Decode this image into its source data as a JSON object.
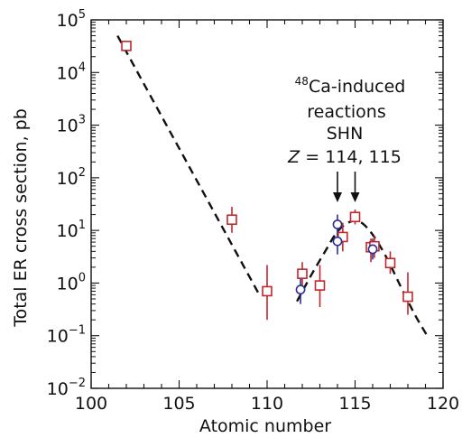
{
  "chart_data": {
    "type": "scatter",
    "title": "",
    "xlabel": "Atomic number",
    "ylabel": "Total ER cross section, pb",
    "xlim": [
      100,
      120
    ],
    "ylim": [
      0.01,
      100000
    ],
    "yscale": "log",
    "x_ticks": [
      "100",
      "105",
      "110",
      "115",
      "120"
    ],
    "y_ticks": [
      {
        "base": "10",
        "exp": "−2",
        "value": 0.01
      },
      {
        "base": "10",
        "exp": "−1",
        "value": 0.1
      },
      {
        "base": "10",
        "exp": "0",
        "value": 1
      },
      {
        "base": "10",
        "exp": "1",
        "value": 10
      },
      {
        "base": "10",
        "exp": "2",
        "value": 100
      },
      {
        "base": "10",
        "exp": "3",
        "value": 1000
      },
      {
        "base": "10",
        "exp": "4",
        "value": 10000
      },
      {
        "base": "10",
        "exp": "5",
        "value": 100000
      }
    ],
    "grid": false,
    "colors": {
      "squares": "#c0272d",
      "circles": "#2b2f8f",
      "fit": "#111111"
    },
    "annotations": {
      "reaction_prefix": "48",
      "reaction_line1": "Ca-induced",
      "reaction_line2": "reactions",
      "shn_label": "SHN",
      "z_symbol": "Z",
      "z_values": " = 114, 115",
      "arrows_at_x": [
        114,
        115
      ]
    },
    "series": [
      {
        "marker": "square",
        "points": [
          {
            "x": 102,
            "y": 32000,
            "lo": 28000,
            "hi": 36000
          },
          {
            "x": 108,
            "y": 16,
            "lo": 9,
            "hi": 28
          },
          {
            "x": 110,
            "y": 0.7,
            "lo": 0.2,
            "hi": 2.2
          },
          {
            "x": 112,
            "y": 1.5,
            "lo": 0.8,
            "hi": 2.5
          },
          {
            "x": 113,
            "y": 0.9,
            "lo": 0.35,
            "hi": 2.2
          },
          {
            "x": 114.3,
            "y": 7.5,
            "lo": 4.0,
            "hi": 14
          },
          {
            "x": 115,
            "y": 18,
            "lo": 13,
            "hi": 25
          },
          {
            "x": 115.9,
            "y": 4.8,
            "lo": 2.5,
            "hi": 7.0
          },
          {
            "x": 116.1,
            "y": 5.0,
            "lo": 3.0,
            "hi": 8.0
          },
          {
            "x": 117,
            "y": 2.4,
            "lo": 1.5,
            "hi": 4.0
          },
          {
            "x": 118,
            "y": 0.55,
            "lo": 0.25,
            "hi": 1.6
          }
        ]
      },
      {
        "marker": "circle",
        "points": [
          {
            "x": 111.9,
            "y": 0.75,
            "lo": 0.4,
            "hi": 1.5
          },
          {
            "x": 114,
            "y": 13,
            "lo": 8,
            "hi": 20
          },
          {
            "x": 114,
            "y": 6.2,
            "lo": 3.5,
            "hi": 10
          },
          {
            "x": 116,
            "y": 4.4,
            "lo": 2.8,
            "hi": 7
          }
        ]
      }
    ],
    "fits": [
      {
        "x": [
          101.5,
          109.5
        ],
        "y": [
          50000,
          0.65
        ]
      },
      {
        "x": [
          111.7,
          112.5,
          113.3,
          114,
          114.7,
          115.3,
          116,
          116.8,
          117.6,
          118.4,
          119.1
        ],
        "y": [
          0.45,
          1.4,
          4.0,
          9.5,
          14.5,
          14.5,
          8.3,
          3.0,
          0.85,
          0.25,
          0.1
        ]
      }
    ]
  }
}
